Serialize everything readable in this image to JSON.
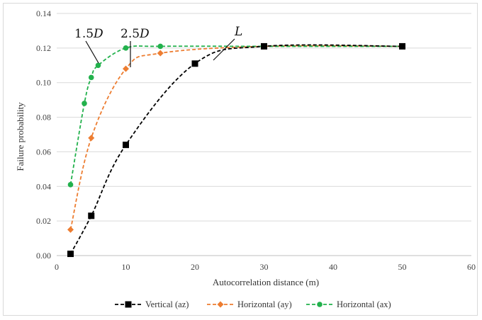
{
  "chart_data": {
    "type": "line",
    "title": "",
    "xlabel": "Autocorrelation distance (m)",
    "ylabel": "Failure probability",
    "xlim": [
      0,
      60
    ],
    "ylim": [
      0,
      0.14
    ],
    "x_ticks": [
      "0",
      "10",
      "20",
      "30",
      "40",
      "50",
      "60"
    ],
    "y_ticks": [
      "0.00",
      "0.02",
      "0.04",
      "0.06",
      "0.08",
      "0.10",
      "0.12",
      "0.14"
    ],
    "grid": "horizontal",
    "legend_position": "bottom",
    "series": [
      {
        "name": "Vertical (az)",
        "color": "#000000",
        "marker": "square",
        "line": "dashed",
        "x": [
          2,
          5,
          10,
          20,
          30,
          50
        ],
        "y": [
          0.001,
          0.023,
          0.064,
          0.111,
          0.121,
          0.121
        ]
      },
      {
        "name": "Horizontal (ay)",
        "color": "#ED7D31",
        "marker": "diamond",
        "line": "dashed",
        "x": [
          2,
          5,
          10,
          15,
          30,
          50
        ],
        "y": [
          0.015,
          0.068,
          0.108,
          0.117,
          0.121,
          0.121
        ]
      },
      {
        "name": "Horizontal (ax)",
        "color": "#22B14C",
        "marker": "circle",
        "line": "dashed",
        "x": [
          2,
          4,
          5,
          6,
          10,
          15,
          30,
          50
        ],
        "y": [
          0.041,
          0.088,
          0.103,
          0.11,
          0.12,
          0.121,
          0.121,
          0.121
        ]
      }
    ],
    "annotations": [
      {
        "num": "1.5",
        "var": "D",
        "series": "Horizontal (ax)"
      },
      {
        "num": "2.5",
        "var": "D",
        "series": "Horizontal (ay)"
      },
      {
        "num": "",
        "var": "L",
        "series": "Vertical (az)"
      }
    ]
  }
}
